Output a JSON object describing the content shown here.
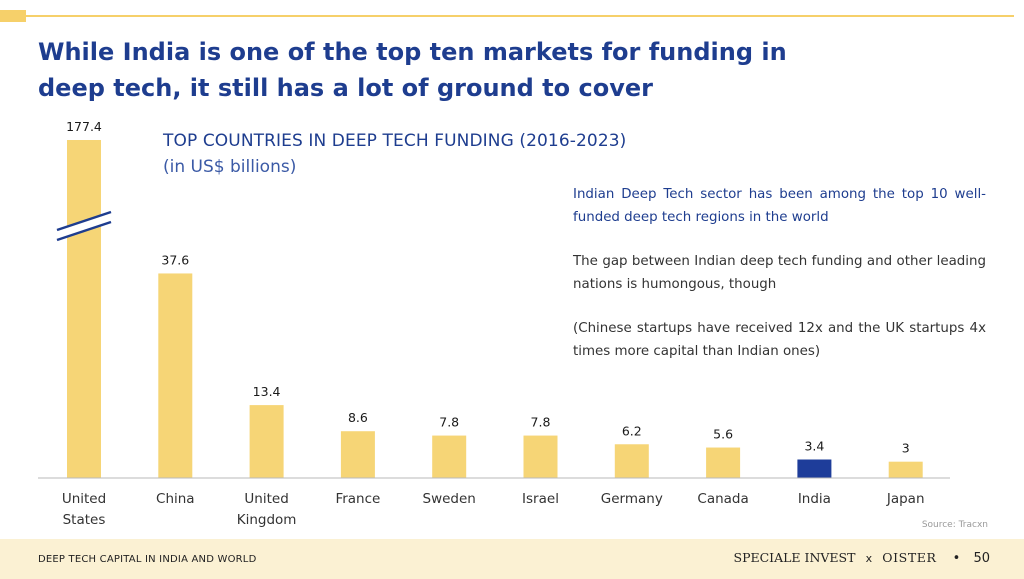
{
  "headline": "While India is one of the top ten markets for funding in deep tech, it still has a lot of ground to cover",
  "commentary": [
    "Indian Deep Tech sector has been among the top 10 well-funded deep tech regions in the world",
    "The gap between Indian deep tech funding and other leading nations is humongous, though",
    "(Chinese startups have received 12x and the UK startups 4x times more capital than Indian ones)"
  ],
  "source": "Source: Tracxn",
  "footer": {
    "left": "DEEP TECH CAPITAL IN INDIA AND WORLD",
    "brand_a": "SPECIALE INVEST",
    "separator": "x",
    "brand_b": "OISTER",
    "page_number": "50"
  },
  "colors": {
    "bar": "#f6d576",
    "highlight": "#1e3d9a",
    "title": "#1e3d8f",
    "footer_band": "#fbf1d3"
  },
  "chart_data": {
    "type": "bar",
    "title": "TOP COUNTRIES IN DEEP TECH FUNDING (2016-2023)",
    "subtitle": "(in US$ billions)",
    "categories": [
      [
        "United",
        "States"
      ],
      [
        "China"
      ],
      [
        "United",
        "Kingdom"
      ],
      [
        "France"
      ],
      [
        "Sweden"
      ],
      [
        "Israel"
      ],
      [
        "Germany"
      ],
      [
        "Canada"
      ],
      [
        "India"
      ],
      [
        "Japan"
      ]
    ],
    "values": [
      177.4,
      37.6,
      13.4,
      8.6,
      7.8,
      7.8,
      6.2,
      5.6,
      3.4,
      3
    ],
    "value_labels": [
      "177.4",
      "37.6",
      "13.4",
      "8.6",
      "7.8",
      "7.8",
      "6.2",
      "5.6",
      "3.4",
      "3"
    ],
    "highlight_category": "India",
    "axis_break_on": "United States",
    "legend": "none",
    "grid": false
  }
}
